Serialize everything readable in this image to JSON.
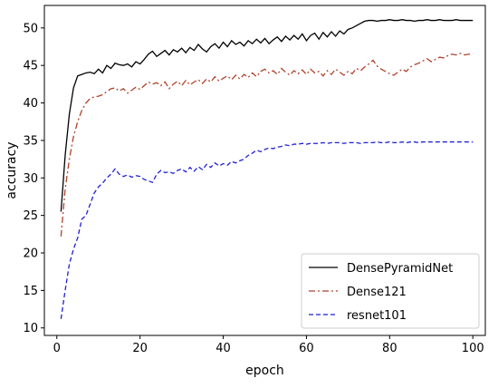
{
  "chart_data": {
    "type": "line",
    "title": "",
    "xlabel": "epoch",
    "ylabel": "accuracy",
    "xlim": [
      -3,
      103
    ],
    "ylim": [
      9,
      53
    ],
    "xticks": [
      0,
      20,
      40,
      60,
      80,
      100
    ],
    "yticks": [
      10,
      15,
      20,
      25,
      30,
      35,
      40,
      45,
      50
    ],
    "grid": false,
    "legend_position": "bottom-right",
    "series": [
      {
        "name": "DensePyramidNet",
        "color": "#000000",
        "dash": "solid",
        "points": [
          [
            1,
            25.5
          ],
          [
            2,
            33
          ],
          [
            3,
            38.5
          ],
          [
            4,
            42
          ],
          [
            5,
            43.6
          ],
          [
            6,
            43.8
          ],
          [
            7,
            44
          ],
          [
            8,
            44.1
          ],
          [
            9,
            43.9
          ],
          [
            10,
            44.5
          ],
          [
            11,
            44
          ],
          [
            12,
            45
          ],
          [
            13,
            44.6
          ],
          [
            14,
            45.3
          ],
          [
            15,
            45.1
          ],
          [
            16,
            45
          ],
          [
            17,
            45.2
          ],
          [
            18,
            44.8
          ],
          [
            19,
            45.5
          ],
          [
            20,
            45.2
          ],
          [
            21,
            45.8
          ],
          [
            22,
            46.5
          ],
          [
            23,
            46.9
          ],
          [
            24,
            46.2
          ],
          [
            25,
            46.6
          ],
          [
            26,
            47
          ],
          [
            27,
            46.4
          ],
          [
            28,
            47.1
          ],
          [
            29,
            46.8
          ],
          [
            30,
            47.3
          ],
          [
            31,
            46.7
          ],
          [
            32,
            47.4
          ],
          [
            33,
            47
          ],
          [
            34,
            47.8
          ],
          [
            35,
            47.2
          ],
          [
            36,
            46.8
          ],
          [
            37,
            47.5
          ],
          [
            38,
            47.9
          ],
          [
            39,
            47.3
          ],
          [
            40,
            48.1
          ],
          [
            41,
            47.5
          ],
          [
            42,
            48.3
          ],
          [
            43,
            47.8
          ],
          [
            44,
            48.1
          ],
          [
            45,
            47.6
          ],
          [
            46,
            48.3
          ],
          [
            47,
            47.9
          ],
          [
            48,
            48.5
          ],
          [
            49,
            48
          ],
          [
            50,
            48.6
          ],
          [
            51,
            47.9
          ],
          [
            52,
            48.4
          ],
          [
            53,
            48.8
          ],
          [
            54,
            48.2
          ],
          [
            55,
            48.9
          ],
          [
            56,
            48.4
          ],
          [
            57,
            49
          ],
          [
            58,
            48.5
          ],
          [
            59,
            49.2
          ],
          [
            60,
            48.3
          ],
          [
            61,
            49
          ],
          [
            62,
            49.3
          ],
          [
            63,
            48.5
          ],
          [
            64,
            49.4
          ],
          [
            65,
            48.8
          ],
          [
            66,
            49.5
          ],
          [
            67,
            48.9
          ],
          [
            68,
            49.6
          ],
          [
            69,
            49.2
          ],
          [
            70,
            49.8
          ],
          [
            71,
            50
          ],
          [
            72,
            50.3
          ],
          [
            73,
            50.6
          ],
          [
            74,
            50.9
          ],
          [
            75,
            51
          ],
          [
            76,
            51
          ],
          [
            77,
            50.9
          ],
          [
            78,
            51
          ],
          [
            79,
            51
          ],
          [
            80,
            51.1
          ],
          [
            81,
            51
          ],
          [
            82,
            51
          ],
          [
            83,
            51.1
          ],
          [
            84,
            51
          ],
          [
            85,
            51
          ],
          [
            86,
            50.9
          ],
          [
            87,
            51
          ],
          [
            88,
            51
          ],
          [
            89,
            51.1
          ],
          [
            90,
            51
          ],
          [
            91,
            51
          ],
          [
            92,
            51.1
          ],
          [
            93,
            51
          ],
          [
            94,
            51
          ],
          [
            95,
            51
          ],
          [
            96,
            51.1
          ],
          [
            97,
            51
          ],
          [
            98,
            51
          ],
          [
            99,
            51
          ],
          [
            100,
            51
          ]
        ]
      },
      {
        "name": "Dense121",
        "color": "#b0412a",
        "dash": "dashdot",
        "points": [
          [
            1,
            22.2
          ],
          [
            2,
            28.5
          ],
          [
            3,
            32.5
          ],
          [
            4,
            35.5
          ],
          [
            5,
            37.5
          ],
          [
            6,
            39
          ],
          [
            7,
            40
          ],
          [
            8,
            40.6
          ],
          [
            9,
            40.8
          ],
          [
            10,
            40.9
          ],
          [
            11,
            41.1
          ],
          [
            12,
            41.5
          ],
          [
            13,
            41.9
          ],
          [
            14,
            42
          ],
          [
            15,
            41.6
          ],
          [
            16,
            41.9
          ],
          [
            17,
            41.3
          ],
          [
            18,
            41.7
          ],
          [
            19,
            42.1
          ],
          [
            20,
            41.8
          ],
          [
            21,
            42.3
          ],
          [
            22,
            42.8
          ],
          [
            23,
            42.5
          ],
          [
            24,
            42.7
          ],
          [
            25,
            42.3
          ],
          [
            26,
            42.8
          ],
          [
            27,
            41.9
          ],
          [
            28,
            42.5
          ],
          [
            29,
            42.9
          ],
          [
            30,
            42.3
          ],
          [
            31,
            43
          ],
          [
            32,
            42.4
          ],
          [
            33,
            42.8
          ],
          [
            34,
            43.1
          ],
          [
            35,
            42.6
          ],
          [
            36,
            43.2
          ],
          [
            37,
            42.8
          ],
          [
            38,
            43.5
          ],
          [
            39,
            42.9
          ],
          [
            40,
            43.3
          ],
          [
            41,
            43.6
          ],
          [
            42,
            43.1
          ],
          [
            43,
            43.7
          ],
          [
            44,
            43.2
          ],
          [
            45,
            43.8
          ],
          [
            46,
            43.4
          ],
          [
            47,
            44
          ],
          [
            48,
            43.5
          ],
          [
            49,
            44.2
          ],
          [
            50,
            44.5
          ],
          [
            51,
            44
          ],
          [
            52,
            44.3
          ],
          [
            53,
            43.8
          ],
          [
            54,
            44.6
          ],
          [
            55,
            44.1
          ],
          [
            56,
            43.7
          ],
          [
            57,
            44.3
          ],
          [
            58,
            43.9
          ],
          [
            59,
            44.4
          ],
          [
            60,
            43.8
          ],
          [
            61,
            44.5
          ],
          [
            62,
            44
          ],
          [
            63,
            44.2
          ],
          [
            64,
            43.6
          ],
          [
            65,
            44.3
          ],
          [
            66,
            43.8
          ],
          [
            67,
            44.5
          ],
          [
            68,
            44.1
          ],
          [
            69,
            43.7
          ],
          [
            70,
            44.2
          ],
          [
            71,
            43.9
          ],
          [
            72,
            44.6
          ],
          [
            73,
            44.3
          ],
          [
            74,
            44.8
          ],
          [
            75,
            45.2
          ],
          [
            76,
            45.7
          ],
          [
            77,
            44.9
          ],
          [
            78,
            44.5
          ],
          [
            79,
            44.2
          ],
          [
            80,
            43.9
          ],
          [
            81,
            43.7
          ],
          [
            82,
            44.1
          ],
          [
            83,
            44.5
          ],
          [
            84,
            44.2
          ],
          [
            85,
            44.8
          ],
          [
            86,
            45.1
          ],
          [
            87,
            45.3
          ],
          [
            88,
            45.6
          ],
          [
            89,
            45.9
          ],
          [
            90,
            45.5
          ],
          [
            91,
            45.8
          ],
          [
            92,
            46.1
          ],
          [
            93,
            46
          ],
          [
            94,
            46.3
          ],
          [
            95,
            46.5
          ],
          [
            96,
            46.4
          ],
          [
            97,
            46.6
          ],
          [
            98,
            46.4
          ],
          [
            99,
            46.5
          ],
          [
            100,
            46.5
          ]
        ]
      },
      {
        "name": "resnet101",
        "color": "#1f1fd6",
        "dash": "dashed",
        "points": [
          [
            1,
            11.2
          ],
          [
            2,
            15
          ],
          [
            3,
            18.5
          ],
          [
            4,
            20.5
          ],
          [
            5,
            22
          ],
          [
            6,
            24.5
          ],
          [
            7,
            25
          ],
          [
            8,
            26.5
          ],
          [
            9,
            28
          ],
          [
            10,
            28.8
          ],
          [
            11,
            29.3
          ],
          [
            12,
            30
          ],
          [
            13,
            30.5
          ],
          [
            14,
            31.2
          ],
          [
            15,
            30.5
          ],
          [
            16,
            30.2
          ],
          [
            17,
            30.4
          ],
          [
            18,
            30.1
          ],
          [
            19,
            30.3
          ],
          [
            20,
            30.2
          ],
          [
            21,
            29.8
          ],
          [
            22,
            29.6
          ],
          [
            23,
            29.4
          ],
          [
            24,
            30.5
          ],
          [
            25,
            31
          ],
          [
            26,
            30.7
          ],
          [
            27,
            30.8
          ],
          [
            28,
            30.6
          ],
          [
            29,
            31
          ],
          [
            30,
            31.2
          ],
          [
            31,
            30.8
          ],
          [
            32,
            31.4
          ],
          [
            33,
            30.9
          ],
          [
            34,
            31.5
          ],
          [
            35,
            31.1
          ],
          [
            36,
            31.8
          ],
          [
            37,
            31.4
          ],
          [
            38,
            32
          ],
          [
            39,
            31.6
          ],
          [
            40,
            31.9
          ],
          [
            41,
            31.7
          ],
          [
            42,
            32.2
          ],
          [
            43,
            32
          ],
          [
            44,
            32.3
          ],
          [
            45,
            32.5
          ],
          [
            46,
            33
          ],
          [
            47,
            33.3
          ],
          [
            48,
            33.7
          ],
          [
            49,
            33.5
          ],
          [
            50,
            33.8
          ],
          [
            51,
            34
          ],
          [
            52,
            33.9
          ],
          [
            53,
            34.1
          ],
          [
            54,
            34.2
          ],
          [
            55,
            34.4
          ],
          [
            56,
            34.3
          ],
          [
            57,
            34.5
          ],
          [
            58,
            34.5
          ],
          [
            59,
            34.6
          ],
          [
            60,
            34.5
          ],
          [
            61,
            34.6
          ],
          [
            62,
            34.6
          ],
          [
            63,
            34.6
          ],
          [
            64,
            34.7
          ],
          [
            65,
            34.6
          ],
          [
            66,
            34.7
          ],
          [
            67,
            34.7
          ],
          [
            68,
            34.7
          ],
          [
            69,
            34.6
          ],
          [
            70,
            34.7
          ],
          [
            71,
            34.7
          ],
          [
            72,
            34.7
          ],
          [
            73,
            34.6
          ],
          [
            74,
            34.7
          ],
          [
            75,
            34.7
          ],
          [
            76,
            34.7
          ],
          [
            77,
            34.8
          ],
          [
            78,
            34.7
          ],
          [
            79,
            34.7
          ],
          [
            80,
            34.8
          ],
          [
            81,
            34.7
          ],
          [
            82,
            34.7
          ],
          [
            83,
            34.8
          ],
          [
            84,
            34.7
          ],
          [
            85,
            34.8
          ],
          [
            86,
            34.8
          ],
          [
            87,
            34.7
          ],
          [
            88,
            34.8
          ],
          [
            89,
            34.8
          ],
          [
            90,
            34.8
          ],
          [
            91,
            34.8
          ],
          [
            92,
            34.8
          ],
          [
            93,
            34.8
          ],
          [
            94,
            34.8
          ],
          [
            95,
            34.8
          ],
          [
            96,
            34.8
          ],
          [
            97,
            34.8
          ],
          [
            98,
            34.8
          ],
          [
            99,
            34.8
          ],
          [
            100,
            34.8
          ]
        ]
      }
    ]
  }
}
